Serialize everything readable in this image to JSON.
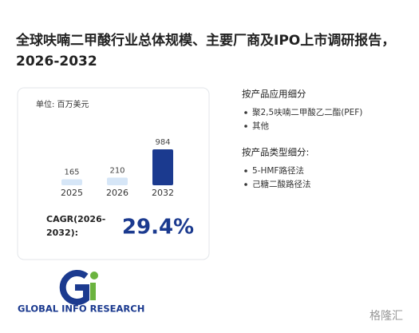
{
  "title": "全球呋喃二甲酸行业总体规模、主要厂商及IPO上市调研报告，2026-2032",
  "chart_data": {
    "type": "bar",
    "unit": "单位: 百万美元",
    "categories": [
      "2025",
      "2026",
      "2032"
    ],
    "values": [
      165,
      210,
      984
    ],
    "colors": [
      "#d6e6f7",
      "#d6e6f7",
      "#1b3a8f"
    ]
  },
  "cagr": {
    "label": "CAGR(2026-2032):",
    "value": "29.4%"
  },
  "segments": [
    {
      "heading": "按产品应用细分",
      "items": [
        "聚2,5呋喃二甲酸乙二酯(PEF)",
        "其他"
      ]
    },
    {
      "heading": "按产品类型细分:",
      "items": [
        "5-HMF路径法",
        "己糖二酸路径法"
      ]
    }
  ],
  "logo": "GLOBAL INFO RESEARCH",
  "watermark": "格隆汇"
}
